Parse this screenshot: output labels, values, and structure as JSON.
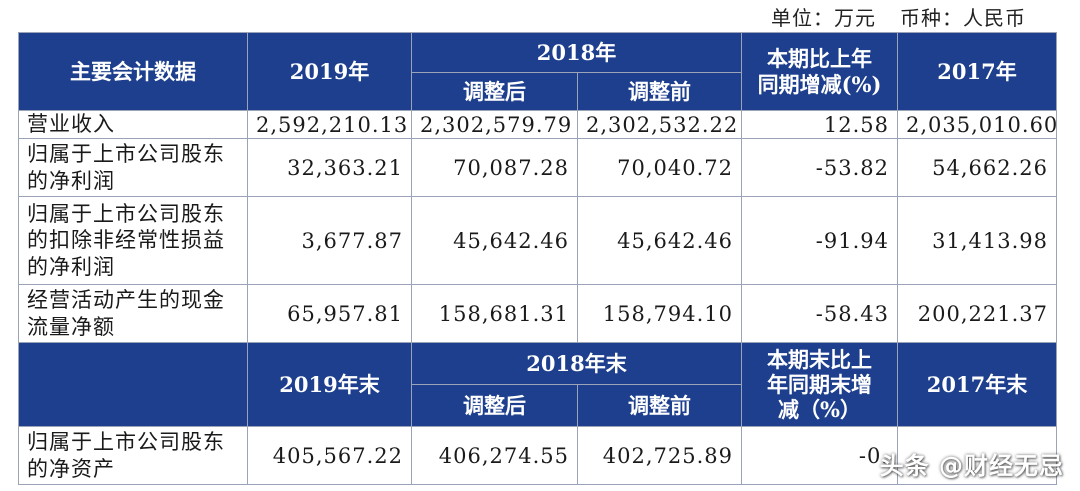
{
  "unit": {
    "unit_label": "单位：万元",
    "currency_label": "币种：人民币"
  },
  "header1": {
    "main_data": "主要会计数据",
    "y2019": "2019年",
    "y2018": "2018年",
    "adjusted_after": "调整后",
    "adjusted_before": "调整前",
    "change_line1": "本期比上年",
    "change_line2": "同期增减(%)",
    "y2017": "2017年"
  },
  "rows1": [
    {
      "label": "营业收入",
      "v2019": "2,592,210.13",
      "v2018_after": "2,302,579.79",
      "v2018_before": "2,302,532.22",
      "change": "12.58",
      "v2017": "2,035,010.60"
    },
    {
      "label": "归属于上市公司股东的净利润",
      "v2019": "32,363.21",
      "v2018_after": "70,087.28",
      "v2018_before": "70,040.72",
      "change": "-53.82",
      "v2017": "54,662.26"
    },
    {
      "label": "归属于上市公司股东的扣除非经常性损益的净利润",
      "v2019": "3,677.87",
      "v2018_after": "45,642.46",
      "v2018_before": "45,642.46",
      "change": "-91.94",
      "v2017": "31,413.98"
    },
    {
      "label": "经营活动产生的现金流量净额",
      "v2019": "65,957.81",
      "v2018_after": "158,681.31",
      "v2018_before": "158,794.10",
      "change": "-58.43",
      "v2017": "200,221.37"
    }
  ],
  "header2": {
    "y2019_end": "2019年末",
    "y2018_end": "2018年末",
    "adjusted_after": "调整后",
    "adjusted_before": "调整前",
    "change_line1": "本期末比上",
    "change_line2": "年同期末增",
    "change_line3": "减（%）",
    "y2017_end": "2017年末"
  },
  "rows2": [
    {
      "label": "归属于上市公司股东的净资产",
      "v2019": "405,567.22",
      "v2018_after": "406,274.55",
      "v2018_before": "402,725.89",
      "change": "-0.",
      "v2017": ""
    }
  ],
  "watermark": "头条 @财经无忌",
  "colors": {
    "header_bg": "#1d3f8d",
    "header_text": "#ffffff",
    "border": "#9aa4b6"
  }
}
